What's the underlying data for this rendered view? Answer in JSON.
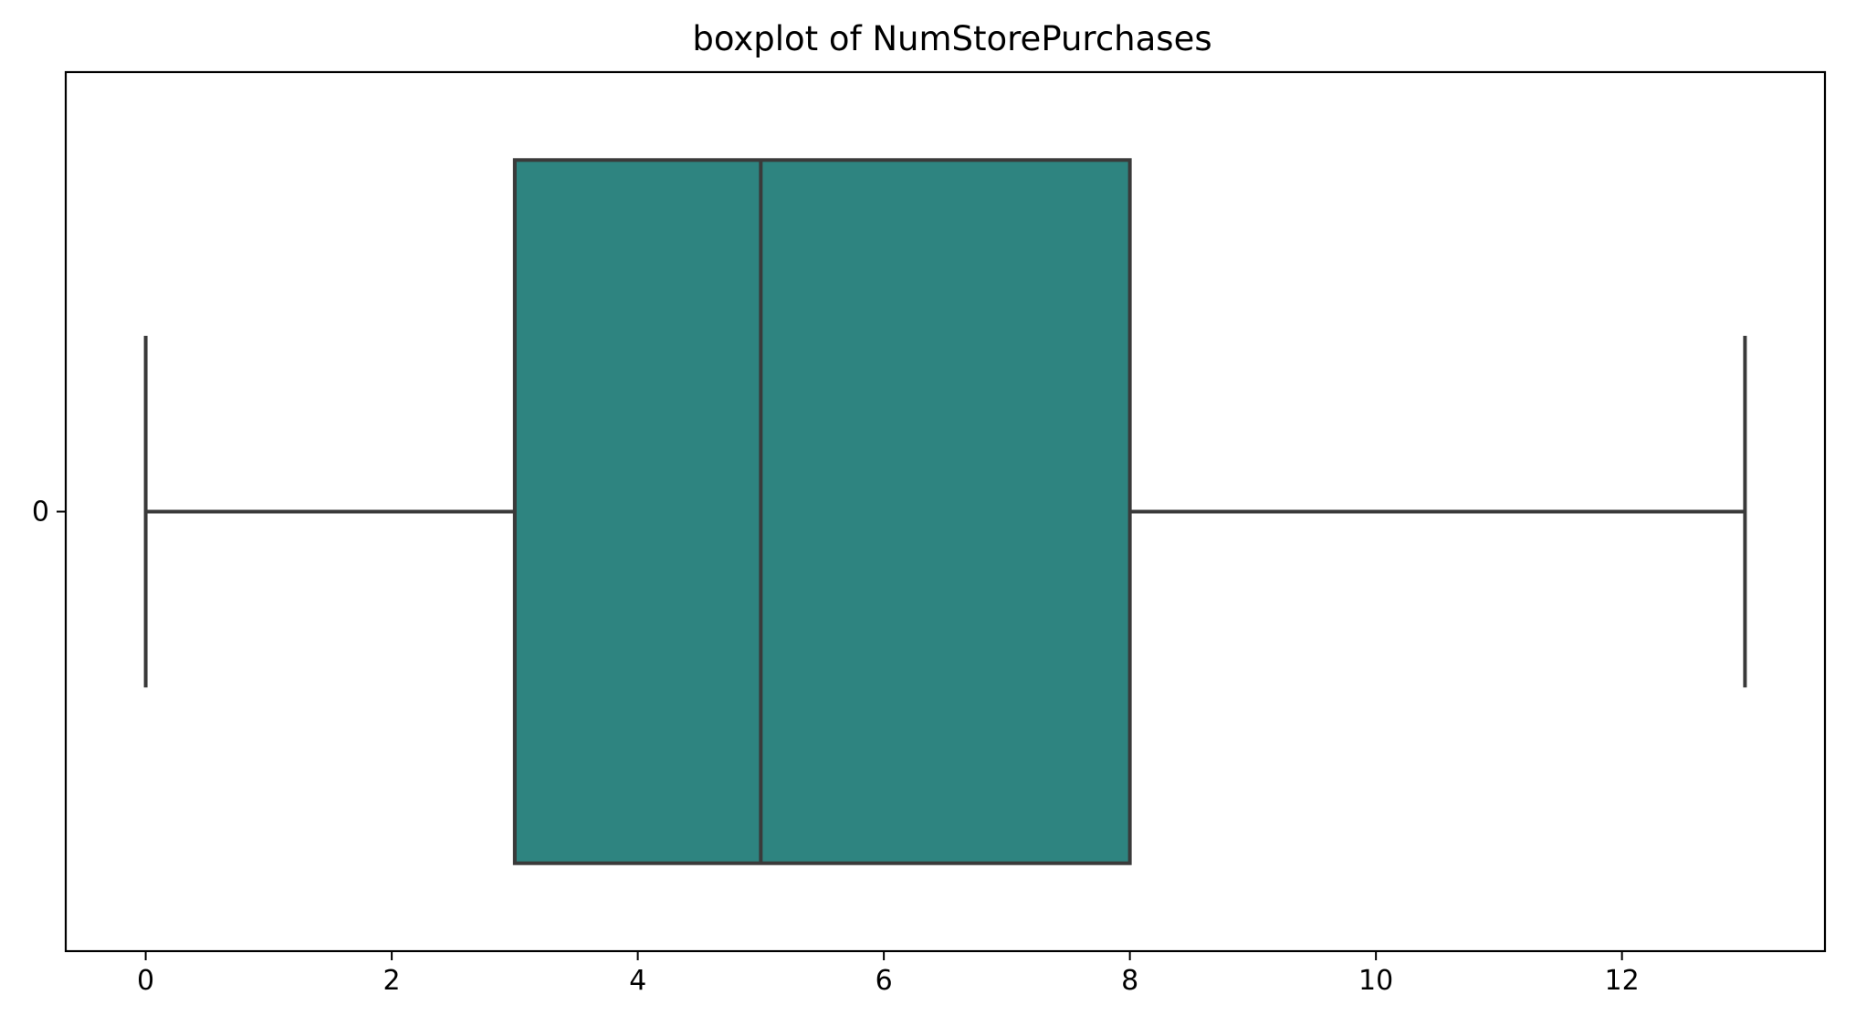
{
  "chart_data": {
    "type": "box",
    "title": "boxplot of NumStorePurchases",
    "xlabel": "",
    "ylabel": "",
    "orientation": "horizontal",
    "xlim": [
      -0.65,
      13.65
    ],
    "xticks": [
      0,
      2,
      4,
      6,
      8,
      10,
      12
    ],
    "categories": [
      "0"
    ],
    "boxes": [
      {
        "category": "0",
        "min": 0,
        "q1": 3,
        "median": 5,
        "q3": 8,
        "max": 13,
        "outliers": []
      }
    ],
    "colors": {
      "box_fill": "#2e8480",
      "line": "#3a3a3a",
      "axes": "#000000"
    },
    "grid": false,
    "legend": "none"
  }
}
